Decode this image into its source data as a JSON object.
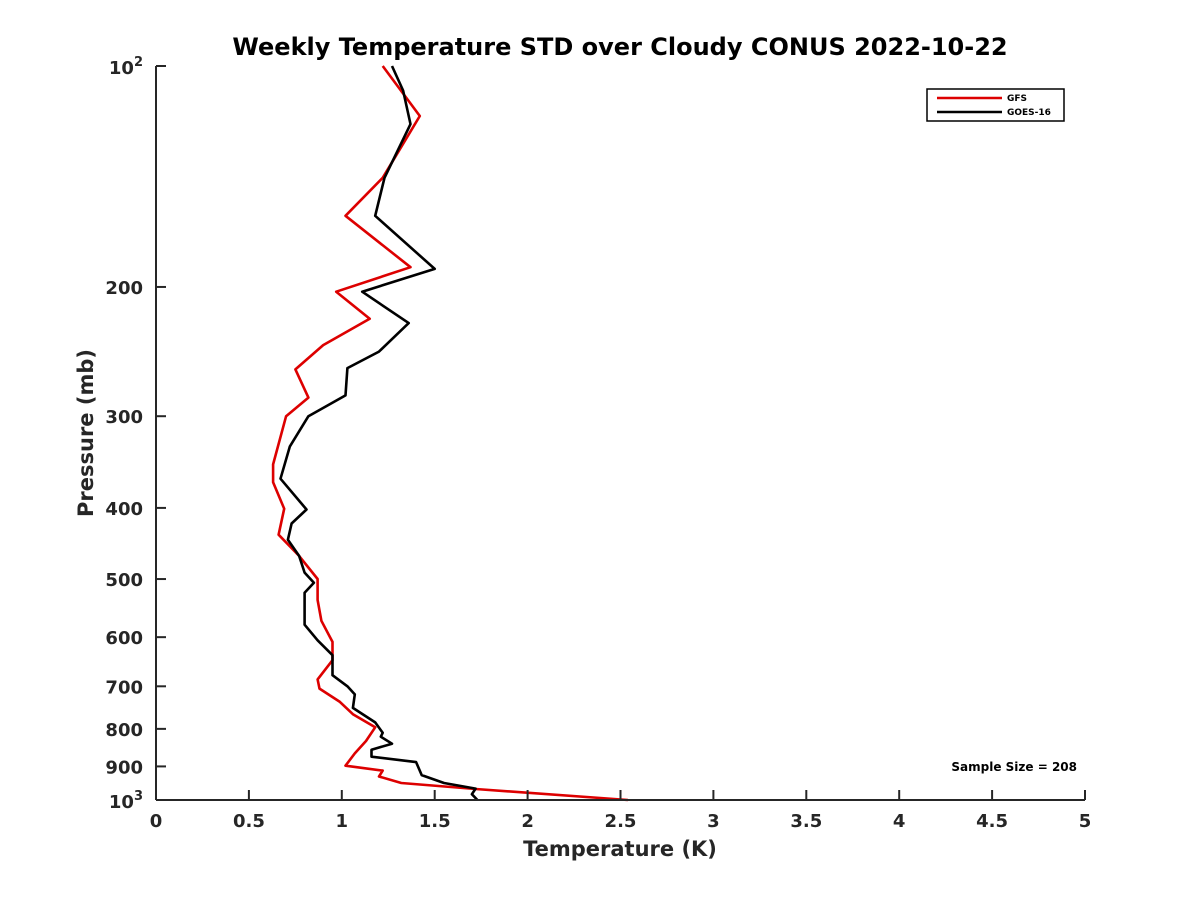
{
  "chart_data": {
    "type": "line",
    "title": "Weekly Temperature STD over Cloudy CONUS 2022-10-22",
    "xlabel": "Temperature (K)",
    "ylabel": "Pressure (mb)",
    "xlim": [
      0,
      5
    ],
    "ylim": [
      100,
      1000
    ],
    "y_scale": "log",
    "y_reversed": true,
    "x_ticks": [
      "0",
      "0.5",
      "1",
      "1.5",
      "2",
      "2.5",
      "3",
      "3.5",
      "4",
      "4.5",
      "5"
    ],
    "y_ticks": [
      {
        "value": 100,
        "base": "10",
        "exp": "2"
      },
      {
        "value": 200,
        "label": "200"
      },
      {
        "value": 300,
        "label": "300"
      },
      {
        "value": 400,
        "label": "400"
      },
      {
        "value": 500,
        "label": "500"
      },
      {
        "value": 600,
        "label": "600"
      },
      {
        "value": 700,
        "label": "700"
      },
      {
        "value": 800,
        "label": "800"
      },
      {
        "value": 900,
        "label": "900"
      },
      {
        "value": 1000,
        "base": "10",
        "exp": "3"
      }
    ],
    "legend_position": "top-right",
    "annotation": "Sample Size = 208",
    "series": [
      {
        "name": "GFS",
        "color": "#dd0000",
        "points": [
          [
            1.22,
            100
          ],
          [
            1.42,
            117
          ],
          [
            1.22,
            142
          ],
          [
            1.02,
            160
          ],
          [
            1.37,
            188
          ],
          [
            0.97,
            203
          ],
          [
            1.15,
            221
          ],
          [
            0.9,
            240
          ],
          [
            0.75,
            259
          ],
          [
            0.82,
            283
          ],
          [
            0.7,
            300
          ],
          [
            0.63,
            349
          ],
          [
            0.63,
            369
          ],
          [
            0.69,
            401
          ],
          [
            0.66,
            435
          ],
          [
            0.77,
            465
          ],
          [
            0.87,
            500
          ],
          [
            0.87,
            534
          ],
          [
            0.89,
            570
          ],
          [
            0.95,
            609
          ],
          [
            0.95,
            645
          ],
          [
            0.87,
            685
          ],
          [
            0.88,
            705
          ],
          [
            0.99,
            735
          ],
          [
            1.06,
            764
          ],
          [
            1.18,
            796
          ],
          [
            1.13,
            831
          ],
          [
            1.07,
            864
          ],
          [
            1.02,
            898
          ],
          [
            1.22,
            912
          ],
          [
            1.2,
            929
          ],
          [
            1.32,
            948
          ],
          [
            1.72,
            966
          ],
          [
            2.54,
            1000
          ]
        ]
      },
      {
        "name": "GOES-16",
        "color": "#000000",
        "points": [
          [
            1.27,
            100
          ],
          [
            1.33,
            108
          ],
          [
            1.37,
            120
          ],
          [
            1.23,
            142
          ],
          [
            1.18,
            160
          ],
          [
            1.5,
            189
          ],
          [
            1.11,
            203
          ],
          [
            1.36,
            224
          ],
          [
            1.2,
            245
          ],
          [
            1.03,
            258
          ],
          [
            1.02,
            281
          ],
          [
            0.82,
            300
          ],
          [
            0.72,
            330
          ],
          [
            0.67,
            365
          ],
          [
            0.81,
            402
          ],
          [
            0.73,
            420
          ],
          [
            0.71,
            442
          ],
          [
            0.77,
            465
          ],
          [
            0.8,
            490
          ],
          [
            0.85,
            506
          ],
          [
            0.8,
            522
          ],
          [
            0.8,
            552
          ],
          [
            0.8,
            577
          ],
          [
            0.87,
            606
          ],
          [
            0.95,
            635
          ],
          [
            0.95,
            676
          ],
          [
            1.03,
            700
          ],
          [
            1.07,
            718
          ],
          [
            1.06,
            749
          ],
          [
            1.18,
            784
          ],
          [
            1.22,
            810
          ],
          [
            1.21,
            820
          ],
          [
            1.27,
            838
          ],
          [
            1.16,
            854
          ],
          [
            1.16,
            873
          ],
          [
            1.4,
            888
          ],
          [
            1.43,
            925
          ],
          [
            1.55,
            948
          ],
          [
            1.72,
            965
          ],
          [
            1.7,
            982
          ],
          [
            1.73,
            1000
          ]
        ]
      }
    ]
  }
}
